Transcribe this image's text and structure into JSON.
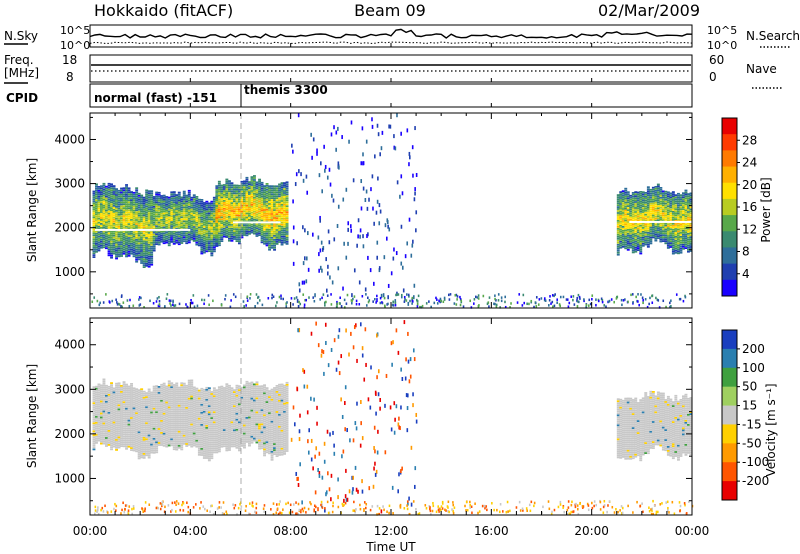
{
  "header": {
    "title": "Hokkaido (fitACF)",
    "beam": "Beam 09",
    "date": "02/Mar/2009"
  },
  "noise_panel": {
    "left_label": "N.Sky",
    "left_ticks": [
      "10^5",
      "10^0"
    ],
    "right_label": "N.Search",
    "right_ticks": [
      "10^5",
      "10^0"
    ]
  },
  "freq_panel": {
    "label_line1": "Freq.",
    "label_line2": "[MHz]",
    "left_ticks": [
      "18",
      "8"
    ],
    "right_label": "Nave",
    "right_ticks": [
      "60",
      "0"
    ]
  },
  "cpid_panel": {
    "label": "CPID",
    "modes": [
      "normal (fast) -151",
      "themis 3300"
    ]
  },
  "chart_data": [
    {
      "type": "heatmap",
      "quantity": "Power",
      "ylabel": "Slant Range [km]",
      "ylim": [
        180,
        4600
      ],
      "yticks": [
        "1000",
        "2000",
        "3000",
        "4000"
      ],
      "x_range_hours": [
        0,
        24
      ],
      "colorbar_label": "Power [dB]",
      "colorbar_ticks": [
        "28",
        "24",
        "20",
        "16",
        "12",
        "8",
        "4"
      ],
      "colorbar_range": [
        0,
        32
      ],
      "colorbar_colors": [
        "#1a00ff",
        "#1f3fb0",
        "#2e6e9a",
        "#3a8a70",
        "#58a84a",
        "#b8cc22",
        "#ffe000",
        "#ffb000",
        "#ff7a00",
        "#ff3a00",
        "#e80000"
      ],
      "echo_regions": [
        {
          "t_start": 0.1,
          "t_end": 2.5,
          "range_low": 1250,
          "range_high": 2950,
          "level": 18
        },
        {
          "t_start": 2.5,
          "t_end": 5.0,
          "range_low": 1500,
          "range_high": 2800,
          "level": 16
        },
        {
          "t_start": 5.0,
          "t_end": 7.8,
          "range_low": 1600,
          "range_high": 3100,
          "level": 22
        },
        {
          "t_start": 21.0,
          "t_end": 24.0,
          "range_low": 1450,
          "range_high": 2900,
          "level": 20
        }
      ]
    },
    {
      "type": "heatmap",
      "quantity": "Velocity",
      "ylabel": "Slant Range [km]",
      "ylim": [
        180,
        4600
      ],
      "yticks": [
        "1000",
        "2000",
        "3000",
        "4000"
      ],
      "x_range_hours": [
        0,
        24
      ],
      "colorbar_label": "Velocity [m s⁻¹]",
      "colorbar_ticks": [
        "200",
        "100",
        "50",
        "15",
        "-15",
        "-50",
        "-100",
        "-200"
      ],
      "colorbar_colors": [
        "#1a3fbf",
        "#2a7fb0",
        "#3fa03f",
        "#9fd060",
        "#c8c8c8",
        "#ffd000",
        "#ff9a00",
        "#ff5500",
        "#e80000"
      ],
      "echo_regions": [
        {
          "t_start": 0.1,
          "t_end": 7.8,
          "range_low": 1550,
          "range_high": 3150,
          "level": 0
        },
        {
          "t_start": 21.0,
          "t_end": 24.0,
          "range_low": 1450,
          "range_high": 2900,
          "level": 0
        }
      ]
    }
  ],
  "x_axis": {
    "label": "Time UT",
    "ticks": [
      "00:00",
      "04:00",
      "08:00",
      "12:00",
      "16:00",
      "20:00",
      "00:00"
    ],
    "tick_hours": [
      0,
      4,
      8,
      12,
      16,
      20,
      24
    ]
  }
}
